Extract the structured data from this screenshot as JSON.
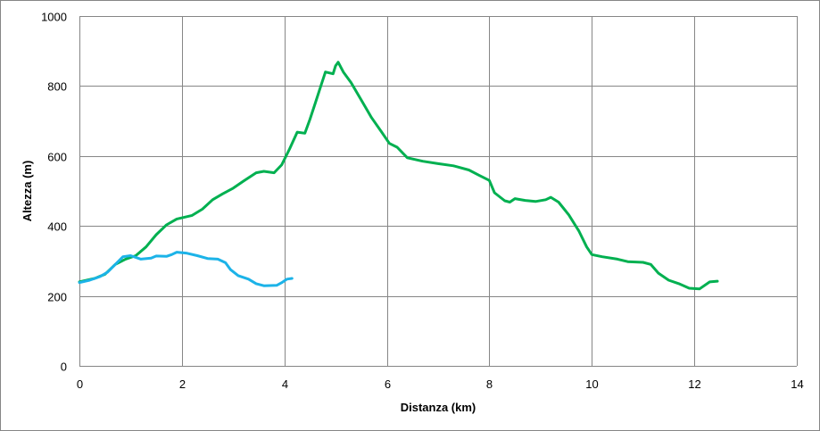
{
  "chart_data": {
    "type": "line",
    "title": "",
    "xlabel": "Distanza (km)",
    "ylabel": "Altezza (m)",
    "xlim": [
      0,
      14
    ],
    "ylim": [
      0,
      1000
    ],
    "x_ticks": [
      0,
      2,
      4,
      6,
      8,
      10,
      12,
      14
    ],
    "y_ticks": [
      0,
      200,
      400,
      600,
      800,
      1000
    ],
    "x_tick_labels": [
      "0",
      "2",
      "4",
      "6",
      "8",
      "10",
      "12",
      "14"
    ],
    "y_tick_labels": [
      "0",
      "200",
      "400",
      "600",
      "800",
      "1000"
    ],
    "grid": true,
    "legend": "none",
    "series": [
      {
        "color": "#00b050",
        "points": [
          [
            0,
            240
          ],
          [
            0.3,
            250
          ],
          [
            0.5,
            262
          ],
          [
            0.7,
            290
          ],
          [
            0.9,
            305
          ],
          [
            1.1,
            315
          ],
          [
            1.3,
            340
          ],
          [
            1.5,
            375
          ],
          [
            1.7,
            403
          ],
          [
            1.9,
            420
          ],
          [
            2.2,
            430
          ],
          [
            2.4,
            448
          ],
          [
            2.6,
            475
          ],
          [
            2.8,
            492
          ],
          [
            3.0,
            508
          ],
          [
            3.2,
            528
          ],
          [
            3.45,
            552
          ],
          [
            3.6,
            556
          ],
          [
            3.8,
            552
          ],
          [
            3.95,
            575
          ],
          [
            4.1,
            620
          ],
          [
            4.25,
            668
          ],
          [
            4.4,
            665
          ],
          [
            4.5,
            705
          ],
          [
            4.6,
            750
          ],
          [
            4.7,
            795
          ],
          [
            4.8,
            840
          ],
          [
            4.95,
            835
          ],
          [
            5.0,
            858
          ],
          [
            5.05,
            868
          ],
          [
            5.15,
            840
          ],
          [
            5.3,
            810
          ],
          [
            5.5,
            760
          ],
          [
            5.7,
            710
          ],
          [
            5.9,
            668
          ],
          [
            6.05,
            636
          ],
          [
            6.2,
            625
          ],
          [
            6.4,
            595
          ],
          [
            6.7,
            585
          ],
          [
            7.0,
            578
          ],
          [
            7.3,
            572
          ],
          [
            7.6,
            560
          ],
          [
            7.8,
            545
          ],
          [
            8.0,
            530
          ],
          [
            8.1,
            495
          ],
          [
            8.3,
            472
          ],
          [
            8.4,
            468
          ],
          [
            8.5,
            478
          ],
          [
            8.7,
            473
          ],
          [
            8.9,
            470
          ],
          [
            9.1,
            475
          ],
          [
            9.2,
            482
          ],
          [
            9.35,
            468
          ],
          [
            9.55,
            432
          ],
          [
            9.75,
            385
          ],
          [
            9.9,
            340
          ],
          [
            10.0,
            318
          ],
          [
            10.2,
            312
          ],
          [
            10.5,
            305
          ],
          [
            10.7,
            298
          ],
          [
            11.0,
            296
          ],
          [
            11.15,
            290
          ],
          [
            11.3,
            265
          ],
          [
            11.5,
            245
          ],
          [
            11.7,
            235
          ],
          [
            11.9,
            222
          ],
          [
            12.1,
            220
          ],
          [
            12.3,
            240
          ],
          [
            12.45,
            242
          ]
        ]
      },
      {
        "color": "#1cb3e8",
        "points": [
          [
            0,
            238
          ],
          [
            0.2,
            245
          ],
          [
            0.4,
            255
          ],
          [
            0.55,
            268
          ],
          [
            0.7,
            290
          ],
          [
            0.85,
            312
          ],
          [
            1.0,
            315
          ],
          [
            1.2,
            305
          ],
          [
            1.4,
            308
          ],
          [
            1.5,
            314
          ],
          [
            1.7,
            313
          ],
          [
            1.8,
            318
          ],
          [
            1.9,
            325
          ],
          [
            2.1,
            322
          ],
          [
            2.3,
            315
          ],
          [
            2.5,
            307
          ],
          [
            2.7,
            305
          ],
          [
            2.85,
            295
          ],
          [
            2.95,
            275
          ],
          [
            3.1,
            258
          ],
          [
            3.3,
            248
          ],
          [
            3.45,
            235
          ],
          [
            3.6,
            229
          ],
          [
            3.85,
            230
          ],
          [
            3.95,
            238
          ],
          [
            4.05,
            248
          ],
          [
            4.15,
            250
          ]
        ]
      }
    ]
  }
}
